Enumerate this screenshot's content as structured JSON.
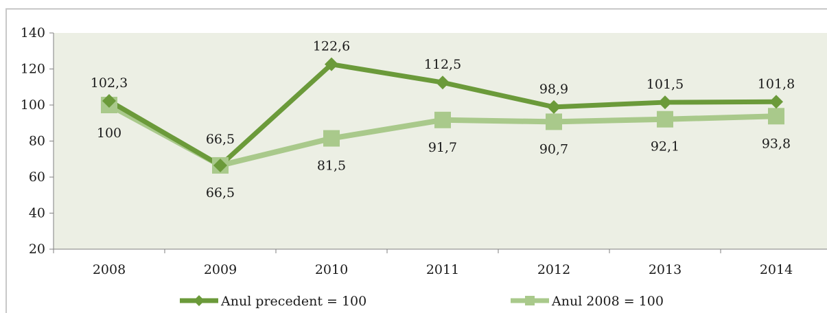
{
  "chart_data": {
    "type": "line",
    "title": "",
    "xlabel": "",
    "ylabel": "",
    "categories": [
      "2008",
      "2009",
      "2010",
      "2011",
      "2012",
      "2013",
      "2014"
    ],
    "ylim": [
      20,
      140
    ],
    "yticks": [
      "20",
      "40",
      "60",
      "80",
      "100",
      "120",
      "140"
    ],
    "grid": false,
    "legend_position": "bottom",
    "series": [
      {
        "name": "Anul precedent = 100",
        "values": [
          102.3,
          66.5,
          122.6,
          112.5,
          98.9,
          101.5,
          101.8
        ],
        "labels": [
          "102,3",
          "66,5",
          "122,6",
          "112,5",
          "98,9",
          "101,5",
          "101,8"
        ],
        "marker": "diamond",
        "color": "#6b9a3a"
      },
      {
        "name": "Anul 2008 = 100",
        "values": [
          100,
          66.5,
          81.5,
          91.7,
          90.7,
          92.1,
          93.8
        ],
        "labels": [
          "100",
          "66,5",
          "81,5",
          "91,7",
          "90,7",
          "92,1",
          "93,8"
        ],
        "marker": "square",
        "color": "#a9c98b"
      }
    ],
    "plot_background": "#ecefe4"
  }
}
